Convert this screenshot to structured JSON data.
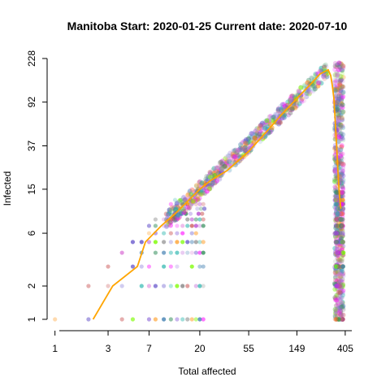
{
  "chart_data": {
    "type": "scatter",
    "title": "Manitoba Start:  2020-01-25   Current date:  2020-07-10",
    "xlabel": "Total affected",
    "ylabel": "Infected",
    "log_x": true,
    "log_y": true,
    "xlim": [
      0.85,
      480
    ],
    "ylim": [
      1,
      228
    ],
    "x_ticks": [
      1,
      3,
      7,
      20,
      55,
      149,
      405
    ],
    "x_tick_labels": [
      "1",
      "3",
      "7",
      "20",
      "55",
      "149",
      "405"
    ],
    "y_ticks": [
      1,
      2,
      6,
      15,
      37,
      92,
      228
    ],
    "y_tick_labels": [
      "1",
      "2",
      "6",
      "15",
      "37",
      "92",
      "228"
    ],
    "grid": false,
    "colors": {
      "line": "#ffa500",
      "points": [
        "#4682b4",
        "#2e8b57",
        "#9370db",
        "#da70d6",
        "#ba55d3",
        "#6a5acd",
        "#ff8c00",
        "#cd5c5c",
        "#20b2aa",
        "#7cfc00",
        "#ff00ff",
        "#808080"
      ]
    },
    "series": [
      {
        "type": "line",
        "x": [
          2.2,
          3.3,
          5.5,
          6.5,
          9,
          12,
          16,
          20,
          25,
          35,
          55,
          80,
          110,
          150,
          200,
          240,
          285,
          300,
          310,
          320,
          330,
          340,
          350,
          360,
          370
        ],
        "y": [
          1,
          2,
          3,
          5,
          7,
          9,
          12,
          15,
          18,
          22,
          33,
          50,
          72,
          100,
          135,
          165,
          180,
          160,
          130,
          100,
          60,
          35,
          20,
          13,
          10
        ]
      }
    ]
  }
}
